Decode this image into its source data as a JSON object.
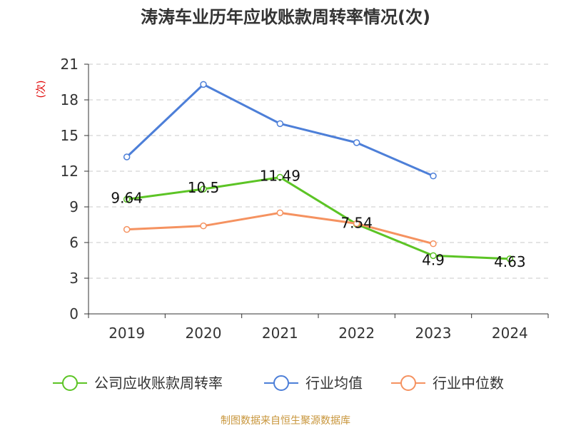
{
  "chart_data": {
    "type": "line",
    "title": "涛涛车业历年应收账款周转率情况(次)",
    "ylabel": "(次)",
    "xlabel": "",
    "categories": [
      "2019",
      "2020",
      "2021",
      "2022",
      "2023",
      "2024"
    ],
    "ylim": [
      0,
      21
    ],
    "yticks": [
      0,
      3,
      6,
      9,
      12,
      15,
      18,
      21
    ],
    "grid": true,
    "series": [
      {
        "name": "公司应收账款周转率",
        "color": "#5cc425",
        "values": [
          9.64,
          10.5,
          11.49,
          7.54,
          4.9,
          4.63
        ],
        "labels": [
          "9.64",
          "10.5",
          "11.49",
          "7.54",
          "4.9",
          "4.63"
        ]
      },
      {
        "name": "行业均值",
        "color": "#4d7fd8",
        "values": [
          13.2,
          19.3,
          16.0,
          14.4,
          11.6,
          null
        ],
        "labels": null
      },
      {
        "name": "行业中位数",
        "color": "#f59260",
        "values": [
          7.1,
          7.4,
          8.5,
          7.6,
          5.9,
          null
        ],
        "labels": null
      }
    ],
    "legend_position": "bottom",
    "source": "制图数据来自恒生聚源数据库"
  }
}
